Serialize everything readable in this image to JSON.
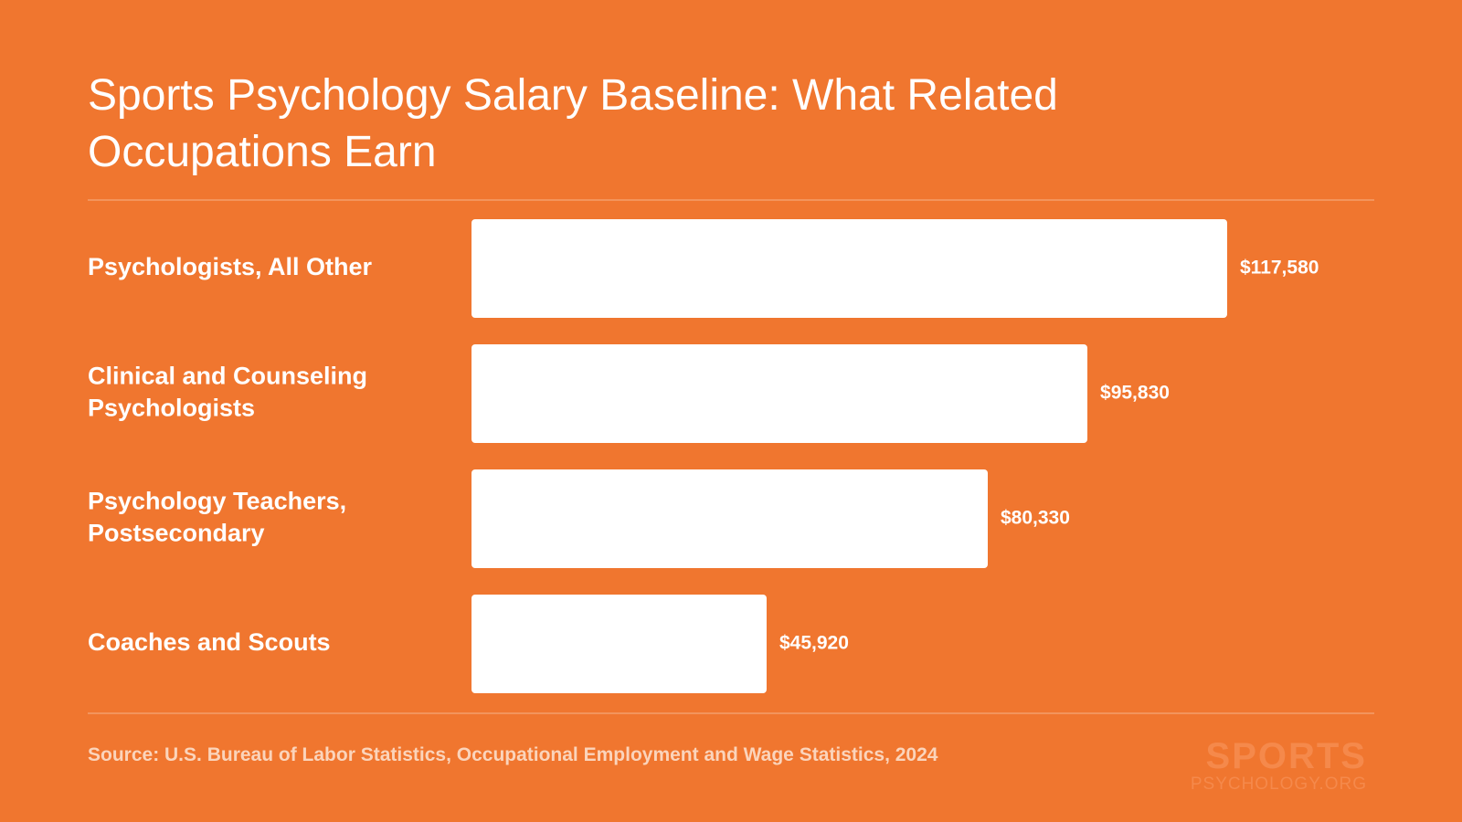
{
  "chart_data": {
    "type": "bar",
    "orientation": "horizontal",
    "title": "Sports Psychology Salary Baseline: What Related Occupations Earn",
    "categories": [
      "Psychologists, All Other",
      "Clinical and Counseling Psychologists",
      "Psychology Teachers, Postsecondary",
      "Coaches and Scouts"
    ],
    "values": [
      117580,
      95830,
      80330,
      45920
    ],
    "value_labels": [
      "$117,580",
      "$95,830",
      "$80,330",
      "$45,920"
    ],
    "xlim": [
      0,
      117580
    ],
    "grid": false,
    "legend": "none",
    "bar_color": "#FFFFFF",
    "background_color": "#F0762F"
  },
  "source": "Source: U.S. Bureau of Labor Statistics, Occupational Employment and Wage Statistics, 2024",
  "logo": {
    "main": "SPORTS",
    "sub": "PSYCHOLOGY.ORG"
  }
}
